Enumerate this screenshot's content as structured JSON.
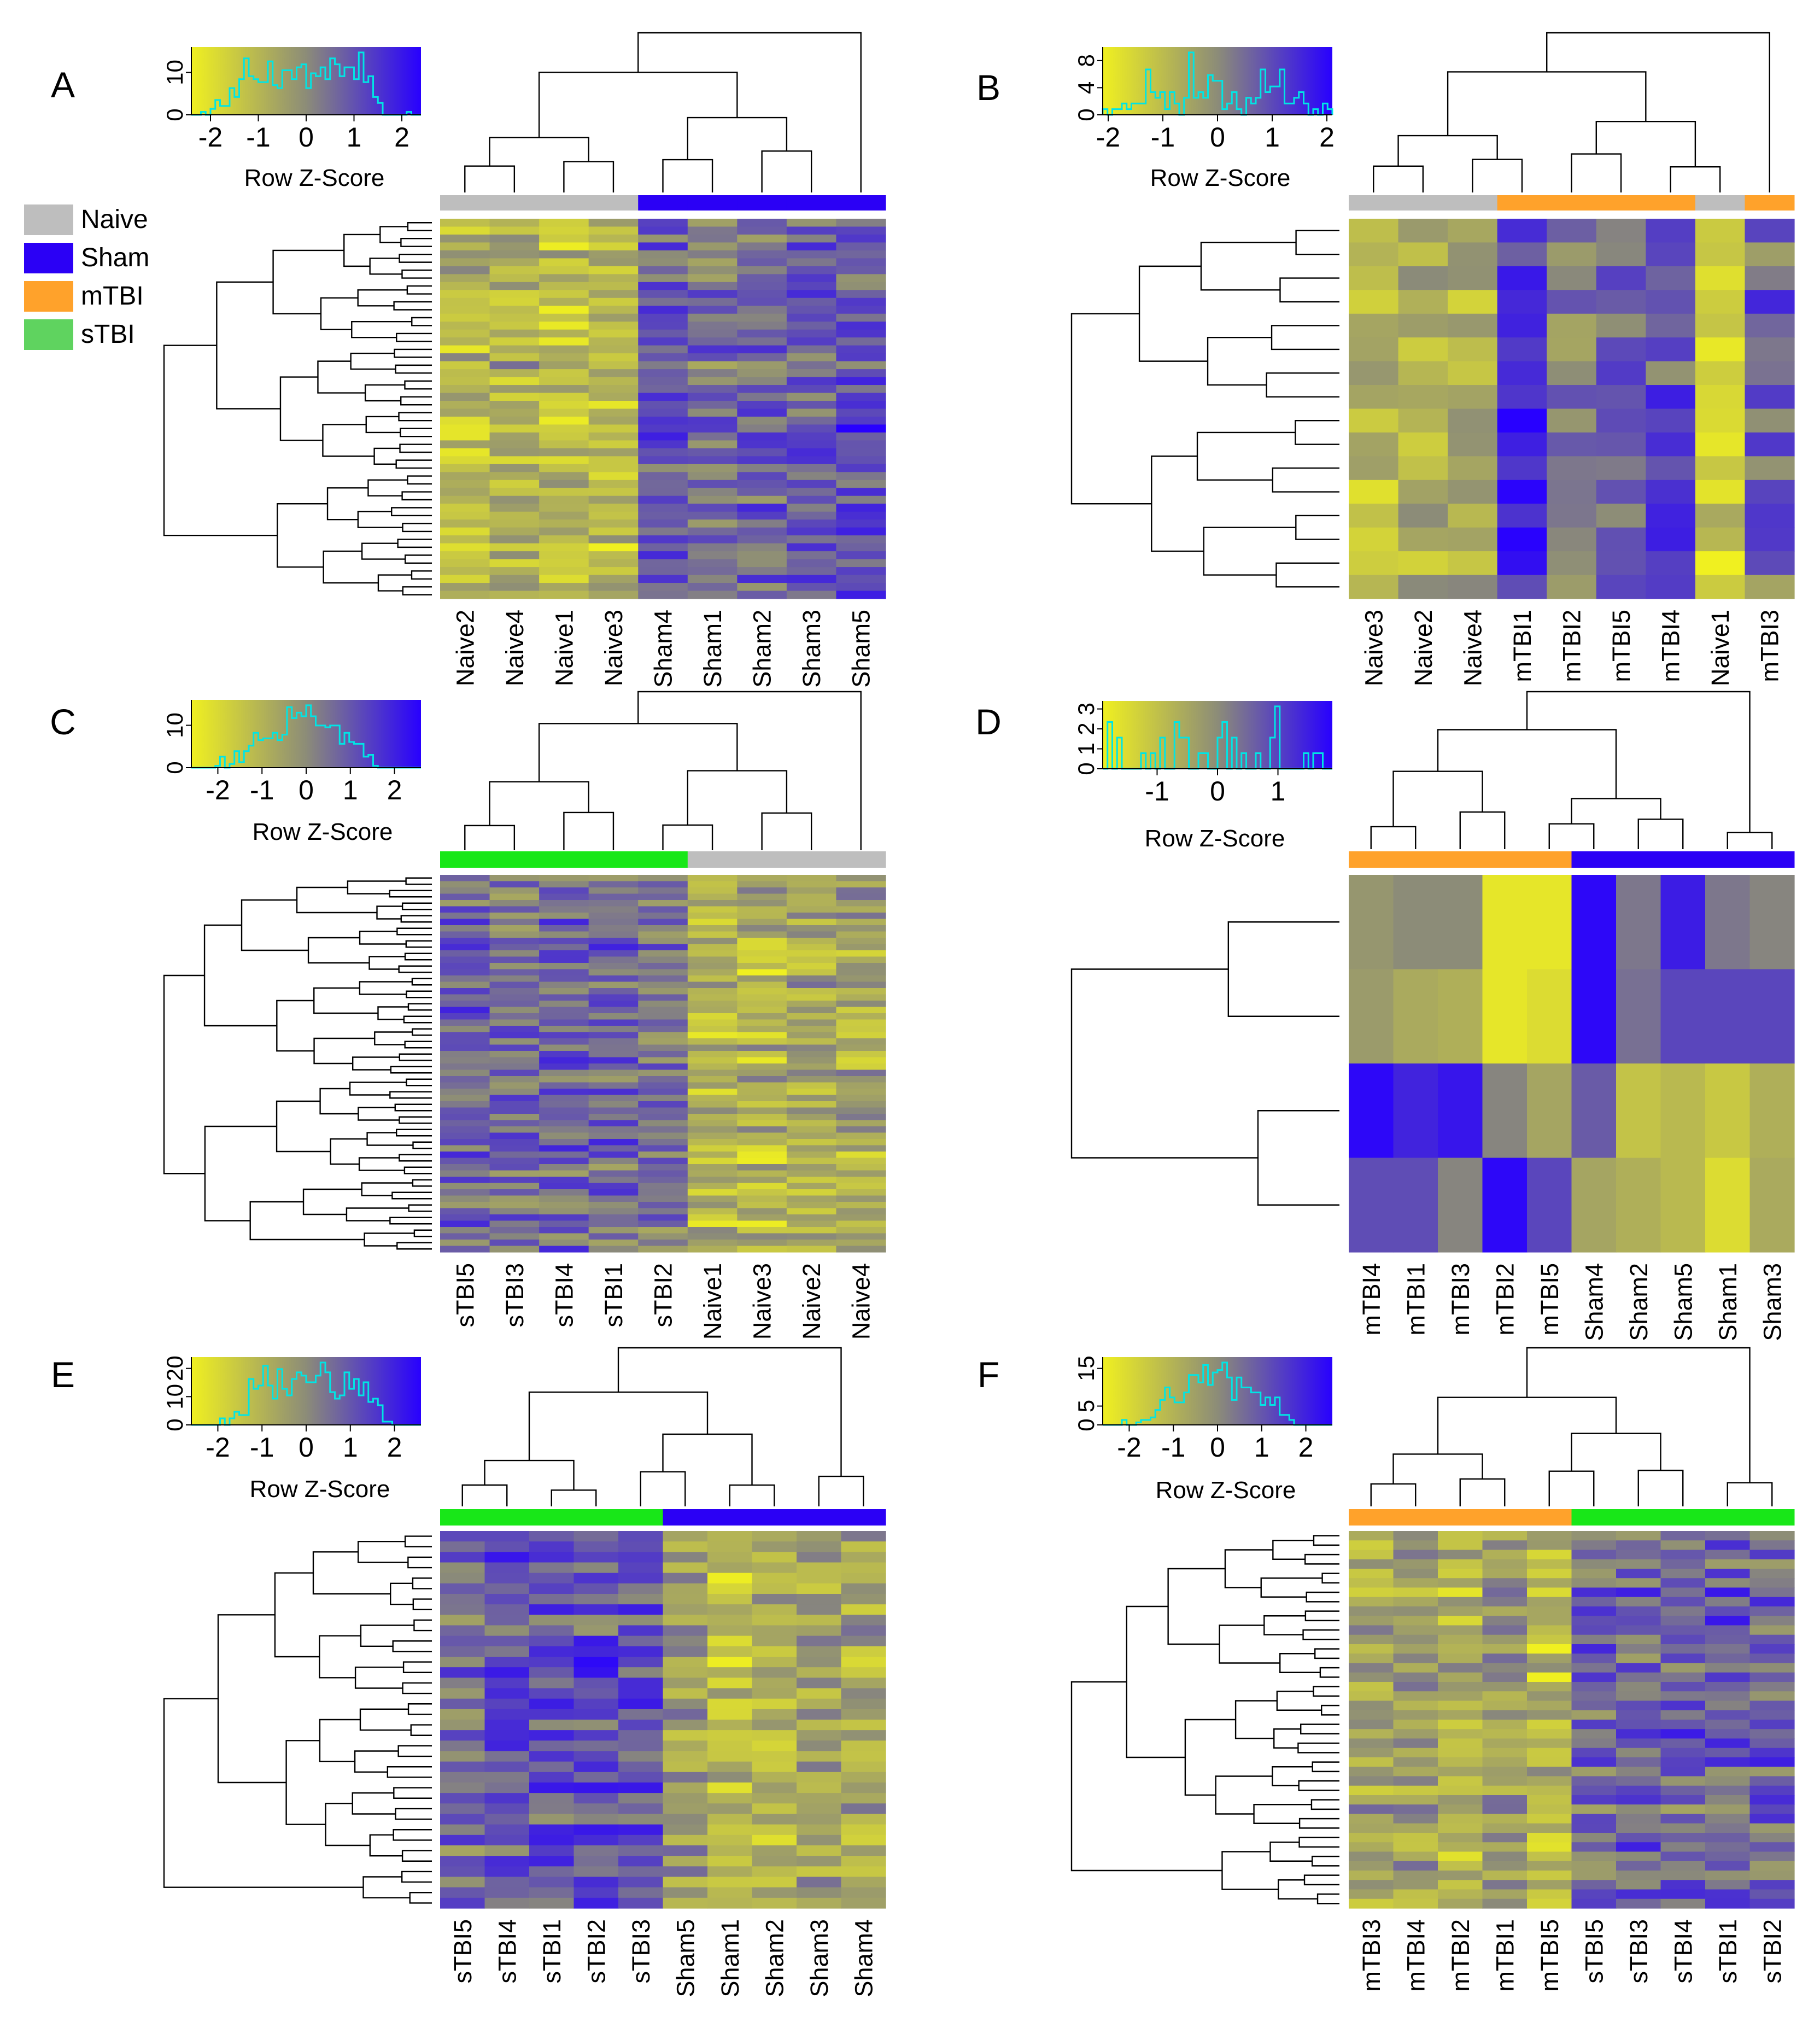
{
  "legend": {
    "items": [
      {
        "label": "Naive",
        "color": "#BEBEBE"
      },
      {
        "label": "Sham",
        "color": "#2B00F5"
      },
      {
        "label": "mTBI",
        "color": "#FFA22B"
      },
      {
        "label": "sTBI",
        "color": "#5FD35F"
      }
    ]
  },
  "colors": {
    "low": "#F0F020",
    "mid": "#8C8C78",
    "high": "#2800FF",
    "histogram": "#00E5E5",
    "group_naive": "#BEBEBE",
    "group_sham": "#2B00F5",
    "group_mtbi": "#FFA22B",
    "group_stbi": "#18E718"
  },
  "chart_data": [
    {
      "panel": "A",
      "type": "heatmap",
      "key_title": "Row Z-Score",
      "key_xticks": [
        "-2",
        "-1",
        "0",
        "1",
        "2"
      ],
      "key_yticks": [
        "0",
        "10"
      ],
      "key_x_range": [
        -2.4,
        2.4
      ],
      "key_y_max": 16,
      "columns": [
        "Naive2",
        "Naive4",
        "Naive1",
        "Naive3",
        "Sham4",
        "Sham1",
        "Sham2",
        "Sham3",
        "Sham5"
      ],
      "groups": [
        "naive",
        "naive",
        "naive",
        "naive",
        "sham",
        "sham",
        "sham",
        "sham",
        "sham"
      ],
      "n_rows": 48,
      "seed": 11,
      "pattern": [
        -1,
        -0.8,
        -1,
        -1,
        0.8,
        0.4,
        0.6,
        0.7,
        1.0
      ]
    },
    {
      "panel": "B",
      "type": "heatmap",
      "key_title": "Row Z-Score",
      "key_xticks": [
        "-2",
        "-1",
        "0",
        "1",
        "2"
      ],
      "key_yticks": [
        "0",
        "4",
        "8"
      ],
      "key_x_range": [
        -2.1,
        2.1
      ],
      "key_y_max": 10,
      "columns": [
        "Naive3",
        "Naive2",
        "Naive4",
        "mTBI1",
        "mTBI2",
        "mTBI5",
        "mTBI4",
        "Naive1",
        "mTBI3"
      ],
      "groups": [
        "naive",
        "naive",
        "naive",
        "mtbi",
        "mtbi",
        "mtbi",
        "mtbi",
        "naive",
        "mtbi"
      ],
      "n_rows": 16,
      "seed": 23,
      "pattern": [
        -1.2,
        -0.6,
        -0.9,
        1.6,
        0.2,
        0.8,
        1.2,
        -1.2,
        0.6
      ]
    },
    {
      "panel": "C",
      "type": "heatmap",
      "key_title": "Row Z-Score",
      "key_xticks": [
        "-2",
        "-1",
        "0",
        "1",
        "2"
      ],
      "key_yticks": [
        "0",
        "10"
      ],
      "key_x_range": [
        -2.6,
        2.6
      ],
      "key_y_max": 16,
      "columns": [
        "sTBI5",
        "sTBI3",
        "sTBI4",
        "sTBI1",
        "sTBI2",
        "Naive1",
        "Naive3",
        "Naive2",
        "Naive4"
      ],
      "groups": [
        "stbi",
        "stbi",
        "stbi",
        "stbi",
        "stbi",
        "naive",
        "naive",
        "naive",
        "naive"
      ],
      "n_rows": 60,
      "seed": 37,
      "pattern": [
        0.6,
        0.5,
        0.7,
        0.6,
        0.3,
        -0.9,
        -1.0,
        -0.6,
        -0.7
      ]
    },
    {
      "panel": "D",
      "type": "heatmap",
      "key_title": "Row Z-Score",
      "key_xticks": [
        "-1",
        "0",
        "1"
      ],
      "key_yticks": [
        "0",
        "1",
        "2",
        "3"
      ],
      "key_x_range": [
        -1.9,
        1.9
      ],
      "key_y_max": 3.4,
      "columns": [
        "mTBI4",
        "mTBI1",
        "mTBI3",
        "mTBI2",
        "mTBI5",
        "Sham4",
        "Sham2",
        "Sham5",
        "Sham1",
        "Sham3"
      ],
      "groups": [
        "mtbi",
        "mtbi",
        "mtbi",
        "mtbi",
        "mtbi",
        "sham",
        "sham",
        "sham",
        "sham",
        "sham"
      ],
      "n_rows": 4,
      "values": [
        [
          -0.2,
          0.0,
          0.0,
          -1.8,
          -1.8,
          1.9,
          0.3,
          1.6,
          0.3,
          0.1
        ],
        [
          -0.3,
          -0.6,
          -0.7,
          -1.8,
          -1.6,
          1.9,
          0.4,
          1.0,
          1.0,
          1.0
        ],
        [
          1.9,
          1.5,
          1.7,
          0.1,
          -0.5,
          0.7,
          -1.1,
          -0.9,
          -1.2,
          -0.7
        ],
        [
          0.9,
          0.9,
          0.1,
          1.9,
          1.0,
          -0.5,
          -0.7,
          -0.9,
          -1.6,
          -0.6
        ]
      ]
    },
    {
      "panel": "E",
      "type": "heatmap",
      "key_title": "Row Z-Score",
      "key_xticks": [
        "-2",
        "-1",
        "0",
        "1",
        "2"
      ],
      "key_yticks": [
        "0",
        "10",
        "20"
      ],
      "key_x_range": [
        -2.6,
        2.6
      ],
      "key_y_max": 24,
      "columns": [
        "sTBI5",
        "sTBI4",
        "sTBI1",
        "sTBI2",
        "sTBI3",
        "Sham5",
        "Sham1",
        "Sham2",
        "Sham3",
        "Sham4"
      ],
      "groups": [
        "stbi",
        "stbi",
        "stbi",
        "stbi",
        "stbi",
        "sham",
        "sham",
        "sham",
        "sham",
        "sham"
      ],
      "n_rows": 36,
      "seed": 51,
      "pattern": [
        0.5,
        0.9,
        0.9,
        1.0,
        0.8,
        -0.3,
        -0.9,
        -0.8,
        -0.5,
        -0.6
      ]
    },
    {
      "panel": "F",
      "type": "heatmap",
      "key_title": "Row Z-Score",
      "key_xticks": [
        "-2",
        "-1",
        "0",
        "1",
        "2"
      ],
      "key_yticks": [
        "0",
        "5",
        "15"
      ],
      "key_x_range": [
        -2.6,
        2.6
      ],
      "key_y_max": 18,
      "columns": [
        "mTBI3",
        "mTBI4",
        "mTBI2",
        "mTBI1",
        "mTBI5",
        "sTBI5",
        "sTBI3",
        "sTBI4",
        "sTBI1",
        "sTBI2"
      ],
      "groups": [
        "mtbi",
        "mtbi",
        "mtbi",
        "mtbi",
        "mtbi",
        "stbi",
        "stbi",
        "stbi",
        "stbi",
        "stbi"
      ],
      "n_rows": 40,
      "seed": 67,
      "pattern": [
        -0.6,
        -0.4,
        -0.8,
        -0.2,
        -1.0,
        0.5,
        0.7,
        0.6,
        0.8,
        0.7
      ]
    }
  ]
}
